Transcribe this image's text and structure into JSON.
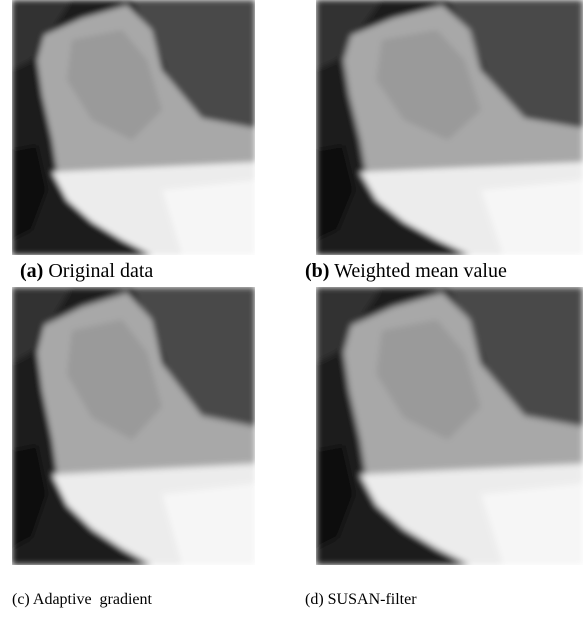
{
  "figures": [
    {
      "label": "(a)",
      "text": "Original data"
    },
    {
      "label": "(b)",
      "text": "Weighted mean value"
    },
    {
      "label": "(c)",
      "text": "Adaptive  gradient"
    },
    {
      "label": "(d)",
      "text": "SUSAN-filter"
    }
  ]
}
